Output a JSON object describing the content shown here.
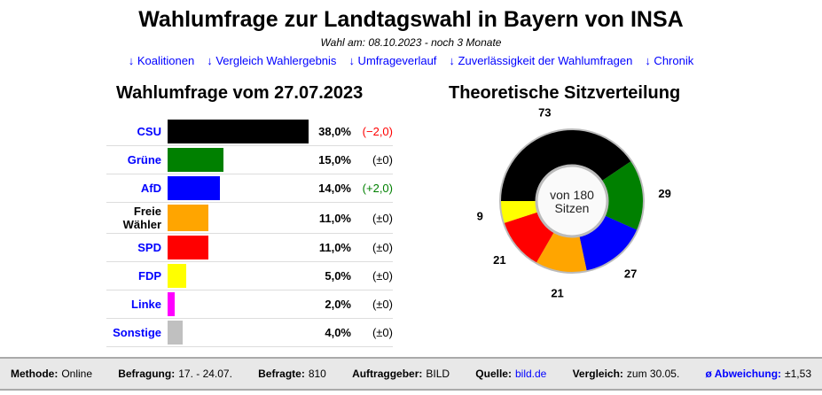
{
  "title": "Wahlumfrage zur Landtagswahl in Bayern von INSA",
  "subtitle": "Wahl am: 08.10.2023 - noch 3 Monate",
  "links": [
    "↓ Koalitionen",
    "↓ Vergleich Wahlergebnis",
    "↓ Umfrageverlauf",
    "↓ Zuverlässigkeit der Wahlumfragen",
    "↓ Chronik"
  ],
  "chart_data": [
    {
      "type": "bar",
      "title": "Wahlumfrage vom 27.07.2023",
      "categories": [
        "CSU",
        "Grüne",
        "AfD",
        "Freie Wähler",
        "SPD",
        "FDP",
        "Linke",
        "Sonstige"
      ],
      "values": [
        38,
        15,
        14,
        11,
        11,
        5,
        2,
        4
      ],
      "value_labels": [
        "38,0%",
        "15,0%",
        "14,0%",
        "11,0%",
        "11,0%",
        "5,0%",
        "2,0%",
        "4,0%"
      ],
      "changes": [
        "(−2,0)",
        "(±0)",
        "(+2,0)",
        "(±0)",
        "(±0)",
        "(±0)",
        "(±0)",
        "(±0)"
      ],
      "change_colors": [
        "#ff0000",
        "#000000",
        "#008000",
        "#000000",
        "#000000",
        "#000000",
        "#000000",
        "#000000"
      ],
      "colors": [
        "#000000",
        "#008000",
        "#0000ff",
        "#ffa500",
        "#ff0000",
        "#ffff00",
        "#ff00ff",
        "#c0c0c0"
      ],
      "label_colors": [
        "#0000ff",
        "#0000ff",
        "#0000ff",
        "#000000",
        "#0000ff",
        "#0000ff",
        "#0000ff",
        "#0000ff"
      ]
    },
    {
      "type": "pie",
      "title": "Theoretische Sitzverteilung",
      "categories": [
        "CSU",
        "Grüne",
        "AfD",
        "Freie Wähler",
        "SPD",
        "FDP"
      ],
      "values": [
        73,
        29,
        27,
        21,
        21,
        9
      ],
      "colors": [
        "#000000",
        "#008000",
        "#0000ff",
        "#ffa500",
        "#ff0000",
        "#ffff00"
      ],
      "center_text": [
        "von 180",
        "Sitzen"
      ]
    }
  ],
  "footer": [
    {
      "label": "Methode:",
      "value": "Online"
    },
    {
      "label": "Befragung:",
      "value": "17. - 24.07."
    },
    {
      "label": "Befragte:",
      "value": "810"
    },
    {
      "label": "Auftraggeber:",
      "value": "BILD"
    },
    {
      "label": "Quelle:",
      "value": "bild.de",
      "link": true
    },
    {
      "label": "Vergleich:",
      "value": "zum 30.05."
    },
    {
      "label": "ø Abweichung:",
      "value": "±1,53",
      "labelLink": true
    }
  ]
}
